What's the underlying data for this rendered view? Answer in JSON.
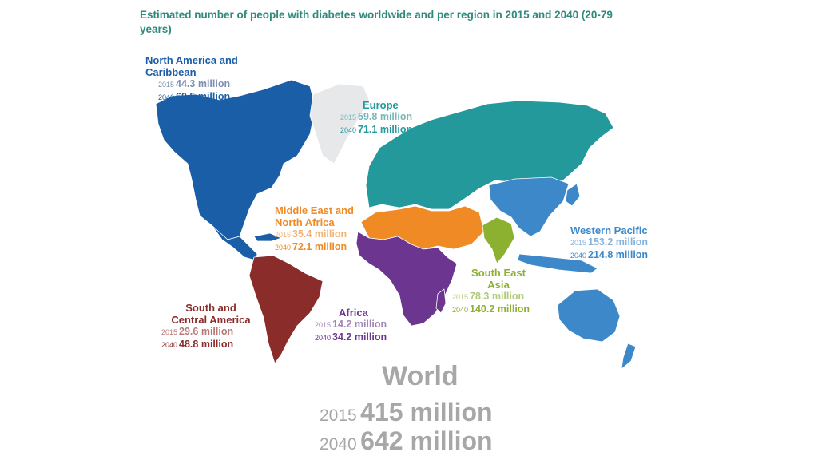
{
  "title": "Estimated number of people with diabetes worldwide and per region in 2015 and 2040 (20-79 years)",
  "colors": {
    "north_america": "#1a5ea8",
    "europe": "#23999c",
    "greenland": "#e7e8ea",
    "mena": "#f08a24",
    "africa": "#6b3590",
    "south_america": "#8a2c2a",
    "south_east_asia": "#8cb030",
    "western_pacific": "#3d88c9",
    "world_text": "#a7a7a7"
  },
  "regions": {
    "north_america": {
      "name": "North America and Caribbean",
      "y2015_label": "2015",
      "v2015": "44.3 million",
      "y2040_label": "2040",
      "v2040": "60.5 million"
    },
    "europe": {
      "name": "Europe",
      "y2015_label": "2015",
      "v2015": "59.8 million",
      "y2040_label": "2040",
      "v2040": "71.1 million"
    },
    "mena": {
      "name": "Middle East and North Africa",
      "y2015_label": "2015",
      "v2015": "35.4 million",
      "y2040_label": "2040",
      "v2040": "72.1 million"
    },
    "western_pacific": {
      "name": "Western Pacific",
      "y2015_label": "2015",
      "v2015": "153.2 million",
      "y2040_label": "2040",
      "v2040": "214.8 million"
    },
    "south_east_asia": {
      "name": "South East Asia",
      "y2015_label": "2015",
      "v2015": "78.3 million",
      "y2040_label": "2040",
      "v2040": "140.2 million"
    },
    "africa": {
      "name": "Africa",
      "y2015_label": "2015",
      "v2015": "14.2 million",
      "y2040_label": "2040",
      "v2040": "34.2 million"
    },
    "south_america": {
      "name": "South and Central America",
      "y2015_label": "2015",
      "v2015": "29.6 million",
      "y2040_label": "2040",
      "v2040": "48.8 million"
    }
  },
  "world": {
    "name": "World",
    "y2015_label": "2015",
    "v2015": "415 million",
    "y2040_label": "2040",
    "v2040": "642 million"
  }
}
